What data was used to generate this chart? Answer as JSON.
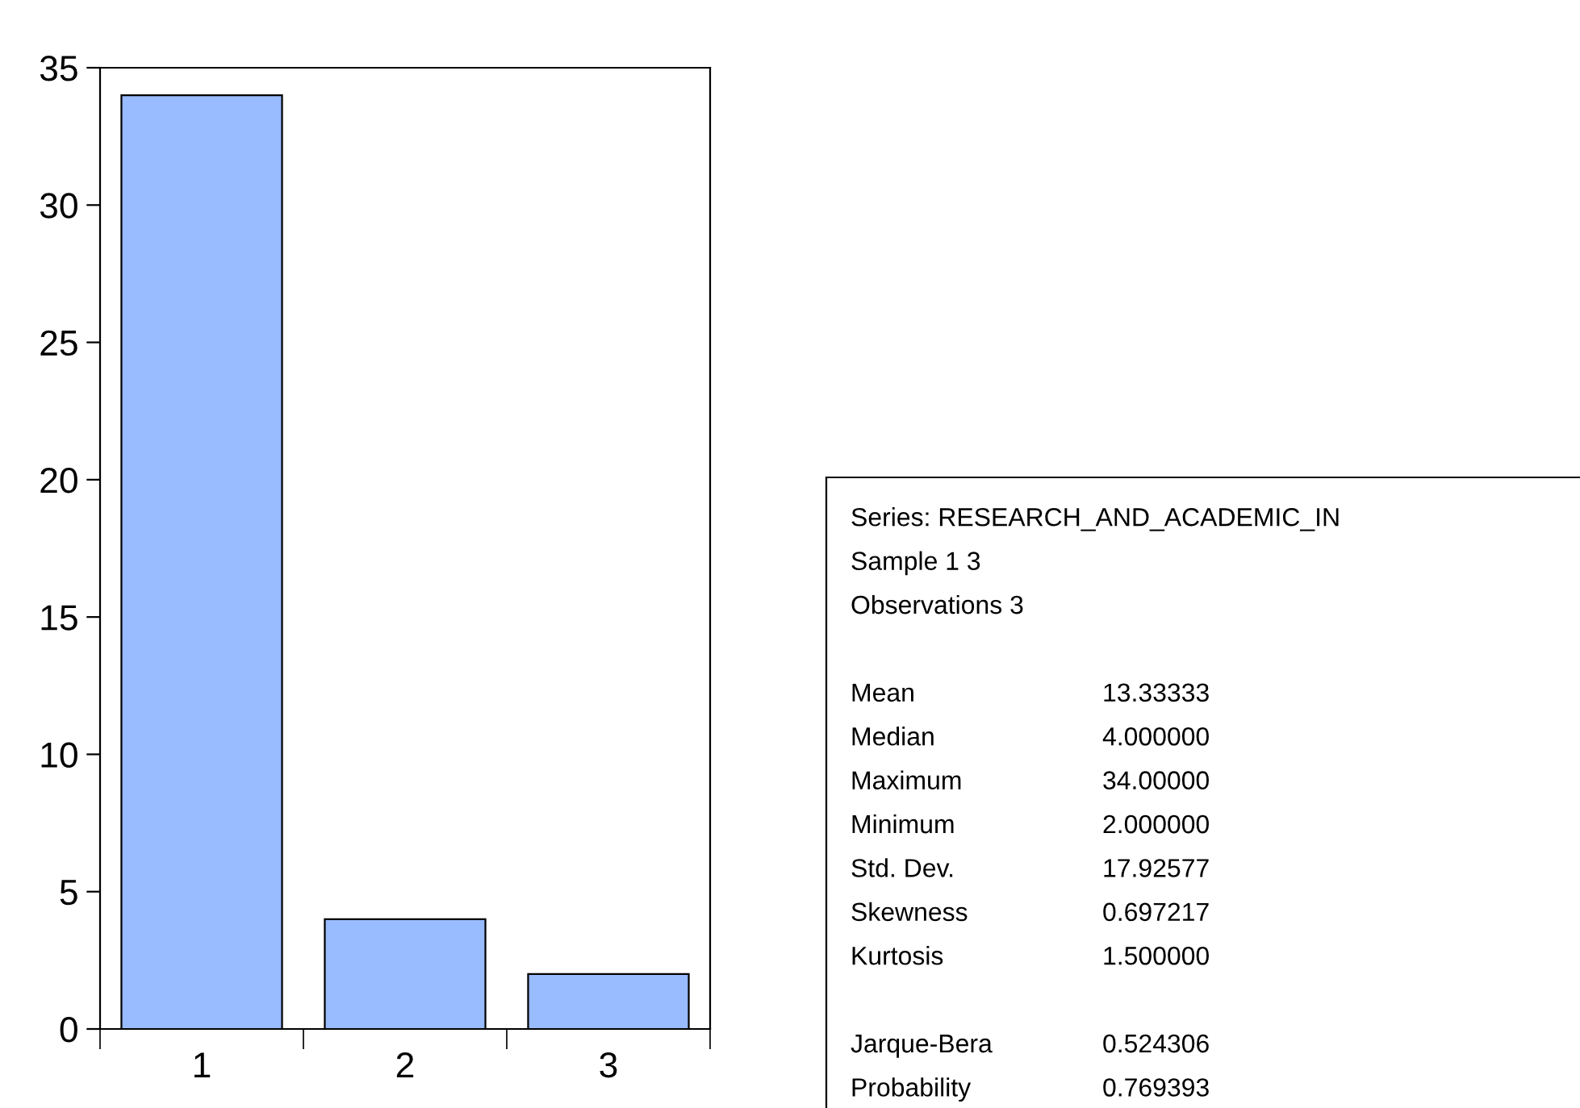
{
  "chart_data": [
    {
      "type": "bar",
      "categories": [
        "1",
        "2",
        "3"
      ],
      "values": [
        34,
        4,
        2
      ],
      "color": "#99bbff",
      "ylim": [
        0,
        35
      ],
      "yticks": [
        0,
        5,
        10,
        15,
        20,
        25,
        30,
        35
      ],
      "grid": false,
      "legend": false
    },
    {
      "type": "other",
      "title": "Series: RESEARCH_AND_ACADEMIC_IN",
      "annotations": [
        "Sample 1 3",
        "Observations 3"
      ],
      "categories": [
        "Mean",
        "Median",
        "Maximum",
        "Minimum",
        "Std. Dev.",
        "Skewness",
        "Kurtosis",
        null,
        "Jarque-Bera",
        "Probability"
      ],
      "values": [
        13.33333,
        4.0,
        34.0,
        2.0,
        17.92577,
        0.697217,
        1.5,
        null,
        0.524306,
        0.769393
      ],
      "value_labels": [
        "13.33333",
        "4.000000",
        "34.00000",
        "2.000000",
        "17.92577",
        "0.697217",
        "1.500000",
        null,
        "0.524306",
        "0.769393"
      ]
    }
  ]
}
